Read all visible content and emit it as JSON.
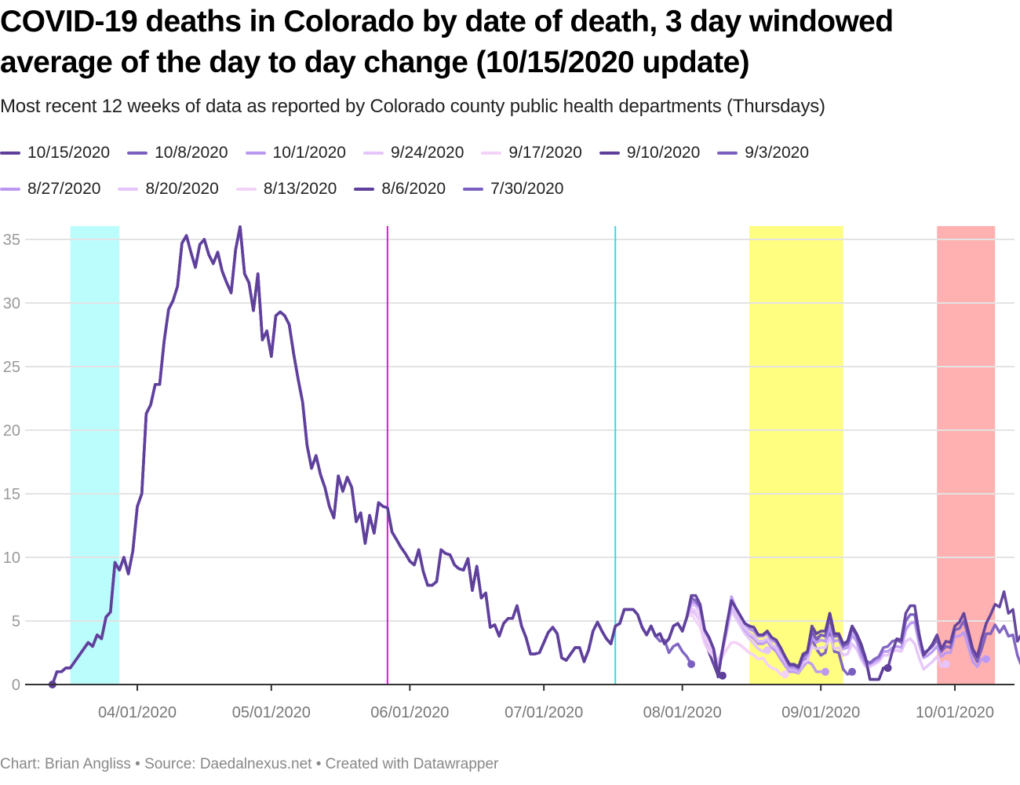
{
  "header": {
    "title": "COVID-19 deaths in Colorado by date of death, 3 day windowed average of the day to day change (10/15/2020 update)",
    "subtitle": "Most recent 12 weeks of data as reported by Colorado county public health departments (Thursdays)"
  },
  "footer": {
    "text": "Chart: Brian Angliss • Source: Daedalnexus.net • Created with Datawrapper"
  },
  "chart_data": {
    "type": "line",
    "title": "COVID-19 deaths in Colorado by date of death, 3 day windowed average of the day to day change (10/15/2020 update)",
    "xlabel": "",
    "ylabel": "",
    "ylim": [
      0,
      36
    ],
    "yticks": [
      0,
      5,
      10,
      15,
      20,
      25,
      30,
      35
    ],
    "x_start": "2020-03-13",
    "x_end": "2020-10-12",
    "xticks": [
      {
        "date": "2020-04-01",
        "label": "04/01/2020"
      },
      {
        "date": "2020-05-01",
        "label": "05/01/2020"
      },
      {
        "date": "2020-06-01",
        "label": "06/01/2020"
      },
      {
        "date": "2020-07-01",
        "label": "07/01/2020"
      },
      {
        "date": "2020-08-01",
        "label": "08/01/2020"
      },
      {
        "date": "2020-09-01",
        "label": "09/01/2020"
      },
      {
        "date": "2020-10-01",
        "label": "10/01/2020"
      }
    ],
    "grid": true,
    "legend_position": "top-left",
    "highlight_ranges": [
      {
        "start": "2020-03-17",
        "end": "2020-03-28",
        "color": "#bbfdfc"
      },
      {
        "start": "2020-08-16",
        "end": "2020-09-06",
        "color": "#fffe80"
      },
      {
        "start": "2020-09-27",
        "end": "2020-10-10",
        "color": "#ffb1b1"
      }
    ],
    "reference_lines": [
      {
        "date": "2020-05-27",
        "color": "#e80ee8"
      },
      {
        "date": "2020-07-17",
        "color": "#2adfe0"
      }
    ],
    "base_series": {
      "start": "2020-03-13",
      "values": [
        0,
        1,
        1,
        1.3,
        1.3,
        1.8,
        2.3,
        2.8,
        3.3,
        3,
        3.9,
        3.6,
        5.3,
        5.7,
        9.6,
        9,
        10,
        8.7,
        10.5,
        14,
        15,
        21.3,
        22,
        23.6,
        23.6,
        27,
        29.5,
        30.2,
        31.3,
        34.7,
        35.3,
        34,
        32.8,
        34.6,
        35,
        33.8,
        33.1,
        34,
        32.5,
        31.6,
        30.8,
        34.2,
        36,
        32.3,
        31.6,
        29.4,
        32.3,
        27.1,
        27.8,
        25.8,
        29,
        29.3,
        29,
        28.3,
        26,
        24,
        22.2,
        18.8,
        17,
        18,
        16.5,
        15.5,
        14,
        13.1,
        16.4,
        15.2,
        16.3,
        15.5,
        12.8,
        13.5,
        11.1,
        13.3,
        11.9,
        14.3,
        14,
        13.9,
        12,
        11.4,
        10.8,
        10.3,
        9.7,
        9.4,
        10.6,
        8.9,
        7.8,
        7.8,
        8.1,
        10.6,
        10.3,
        10.2,
        9.4,
        9.1,
        9,
        9.9,
        7.4,
        9.3,
        6.8,
        7.2,
        4.5,
        4.7,
        3.8,
        4.8,
        5.2,
        5.2,
        6.2,
        4.6,
        3.7,
        2.4,
        2.4,
        2.5,
        3.3,
        4.1,
        4.5,
        4,
        2.1,
        1.9,
        2.4,
        2.9,
        2.9,
        1.8,
        2.7,
        4.2,
        4.9,
        4.2,
        3.6,
        3.2,
        4.6,
        4.8,
        5.9,
        5.9,
        5.9,
        5.5,
        4.5,
        3.9,
        4.6
      ]
    },
    "series": [
      {
        "name": "10/15/2020",
        "color": "#5e3f99",
        "tail": [
          3.8,
          4,
          3.2,
          3.6,
          4.6,
          4.8,
          4.2,
          5.3,
          7,
          7,
          6.3,
          4.3,
          3.7,
          2.8,
          0.6,
          2.8,
          4.8,
          6.6,
          6,
          5.4,
          4.8,
          4.6,
          4.5,
          3.9,
          3.9,
          4.2,
          3.7,
          3.5,
          2.9,
          2.2,
          1.6,
          1.6,
          1.4,
          2.4,
          2.6,
          4.6,
          4,
          4.2,
          4.2,
          5.6,
          4,
          4,
          3.2,
          3.4,
          4.6,
          4,
          3.2,
          2.1,
          0.4,
          0.4,
          0.4,
          1.3,
          1.3,
          2.6,
          3.6,
          3.5,
          5.6,
          6.2,
          6.2,
          4,
          2.3,
          2.7,
          3.2,
          3.9,
          2.8,
          3.4,
          3.3,
          4.6,
          4.9,
          5.6,
          4.2,
          2.8,
          2.2,
          3.6,
          4.8,
          5.5,
          6.3,
          6.1,
          7.3,
          5.6,
          5.9,
          3.4,
          4,
          4,
          4.2,
          4.3,
          4.3,
          2.4,
          2.3
        ]
      },
      {
        "name": "10/8/2020",
        "color": "#7b5fc0",
        "tail": [
          3.8,
          4,
          3.2,
          3.6,
          4.6,
          4.8,
          4.2,
          5.3,
          6.8,
          6.6,
          6.1,
          4.3,
          3.7,
          2.8,
          0.6,
          2.8,
          4.8,
          6.6,
          6,
          5.4,
          4.8,
          4.6,
          4.5,
          3.9,
          3.9,
          4.2,
          3.7,
          3.5,
          2.9,
          2.2,
          1.5,
          1.5,
          1.3,
          2.2,
          2.5,
          4.2,
          3.6,
          3.9,
          3.8,
          5.2,
          3.8,
          3.8,
          3,
          3.2,
          4.4,
          3.8,
          2.8,
          1.9,
          1.7,
          2,
          2.2,
          2.9,
          3,
          3.4,
          3.5,
          3.3,
          5,
          5.5,
          5.5,
          3.8,
          2.5,
          2.7,
          3,
          3.5,
          2.6,
          3,
          2.9,
          4.3,
          4.4,
          5,
          3.8,
          2.5,
          1.8,
          2.8,
          4,
          4,
          4.7,
          4.1,
          4.6,
          3.8,
          3.9,
          2.3,
          1.4,
          1.7
        ]
      },
      {
        "name": "10/1/2020",
        "color": "#bb99f2",
        "tail": [
          3.8,
          4,
          3.2,
          3.6,
          4.6,
          4.8,
          4.2,
          5.3,
          6.5,
          6.4,
          6,
          4.2,
          3.6,
          2.8,
          0.9,
          2.8,
          4.8,
          6.9,
          6,
          5.4,
          4.8,
          4.4,
          4.2,
          3.8,
          3.8,
          4,
          3.5,
          3.3,
          2.6,
          2,
          1.3,
          1.3,
          1.1,
          2,
          2.3,
          3.7,
          3.3,
          3.5,
          3.4,
          4.5,
          3.4,
          3.5,
          2.8,
          2.9,
          3.9,
          3.4,
          2.3,
          1.6,
          1.6,
          1.8,
          2,
          2.6,
          2.6,
          2.9,
          3,
          2.9,
          4.3,
          4.8,
          4.9,
          3.2,
          2.1,
          2.3,
          2.6,
          3,
          2.2,
          2.5,
          2.5,
          3.8,
          3.8,
          4.1,
          3,
          1.8,
          1.4,
          2,
          2
        ]
      },
      {
        "name": "9/24/2020",
        "color": "#e5c5fa",
        "tail": [
          3.8,
          4,
          3.2,
          3.6,
          4.6,
          4.8,
          4.2,
          5.3,
          6.3,
          6.2,
          5.8,
          4.1,
          3.5,
          2.8,
          1.4,
          2.8,
          4.6,
          6.3,
          5.6,
          5,
          4.4,
          4,
          3.8,
          3.4,
          3.4,
          3.6,
          3.1,
          2.9,
          2.3,
          1.8,
          1.2,
          1.2,
          1,
          1.7,
          1.9,
          3,
          2.8,
          2.9,
          2.9,
          3.7,
          2.8,
          2.9,
          2.3,
          2.4,
          3.2,
          2.8,
          2,
          1.4,
          1.4,
          1.6,
          1.8,
          2.3,
          2.3,
          2.6,
          2.7,
          2.6,
          3.4,
          3.6,
          3.2,
          2.1,
          1.2,
          1.5,
          1.8,
          2.2,
          1.4,
          1.6
        ]
      },
      {
        "name": "9/17/2020",
        "color": "#f3d2f8",
        "tail": [
          3.8,
          4,
          3.2,
          3.6,
          4.6,
          4.8,
          4.2,
          5.3,
          6,
          5.8,
          5.2,
          3.8,
          3.2,
          2.6,
          1.8,
          2.2,
          2.8,
          3.3,
          3.3,
          3.1,
          2.8,
          2.5,
          2.3,
          2,
          2.1,
          1.6,
          1.3,
          1.2,
          0.8,
          0.8
        ]
      },
      {
        "name": "9/10/2020",
        "color": "#5e3f99",
        "tail": [
          3.8,
          4,
          3.2,
          3.6,
          4.6,
          4.8,
          4.2,
          5.3,
          6.5,
          6.4,
          6,
          4.2,
          3.6,
          2.8,
          0.9,
          2.8,
          4.8,
          6.6,
          6,
          5.4,
          4.8,
          4.4,
          4.2,
          3.8,
          3.8,
          4,
          3.5,
          3.3,
          2.6,
          2,
          1.4,
          1.4,
          1.2,
          2.2,
          2.5,
          4.2,
          3.5,
          3.9,
          3.8,
          5.6,
          4,
          4,
          3.2,
          3.4,
          4.6,
          4,
          3.2,
          2.1,
          0.4,
          0.4,
          0.4,
          1.3,
          1.3
        ]
      },
      {
        "name": "9/3/2020",
        "color": "#7b5fc0",
        "tail": [
          3.8,
          4,
          3.2,
          3.6,
          4.6,
          4.8,
          4.2,
          5.3,
          6.3,
          6.2,
          5.8,
          4.1,
          3.5,
          2.8,
          1.4,
          2.8,
          4.6,
          6.3,
          5.6,
          5,
          4.4,
          4,
          3.8,
          3.4,
          3.4,
          3.6,
          3.1,
          2.9,
          2.3,
          1.8,
          1.2,
          1.2,
          1,
          1.9,
          2.2,
          3.6,
          2.8,
          2.3,
          2.5,
          4.3,
          2.6,
          2.5,
          1.2,
          0.8,
          1
        ]
      },
      {
        "name": "8/27/2020",
        "color": "#bb99f2",
        "tail": [
          3.8,
          4,
          3.2,
          3.6,
          4.6,
          4.8,
          4.2,
          5.3,
          6,
          5.8,
          5.2,
          3.8,
          3.2,
          2.6,
          1.6,
          2.8,
          4.4,
          6.2,
          5.6,
          5,
          4.3,
          3.9,
          3.6,
          3.2,
          3.2,
          3.4,
          2.9,
          2.6,
          2,
          1.5,
          1,
          1,
          0.9,
          1.4,
          1.8,
          1.6,
          1,
          1,
          1
        ]
      },
      {
        "name": "8/20/2020",
        "color": "#e5c5fa",
        "tail": [
          3.8,
          4,
          3.2,
          3.6,
          4.6,
          4.8,
          4.2,
          5.3,
          5.8,
          5.5,
          5,
          3.6,
          3,
          2.4,
          1.6,
          2.6,
          4.2,
          5.8,
          5.2,
          4.6,
          4,
          3.6,
          3.2,
          2.8,
          2.6,
          2.7
        ]
      },
      {
        "name": "8/13/2020",
        "color": "#f3d2f8",
        "tail": [
          3.8,
          4,
          3.2,
          3.6,
          4.6,
          4.8,
          4.2,
          5.3,
          5.5,
          5,
          4.5,
          3.2,
          2.6,
          2.2,
          1.6,
          2.3,
          2.8,
          3.3,
          3.3,
          3.1,
          2.8,
          2.5,
          2.3,
          2,
          2.1,
          1.6,
          1.3,
          1.2,
          0.8,
          0.8
        ]
      },
      {
        "name": "8/6/2020",
        "color": "#5e3f99",
        "tail": [
          3.8,
          4,
          3.2,
          3.6,
          4.6,
          4.8,
          4.2,
          5.3,
          5.9,
          5.8,
          5.2,
          3.5,
          2.5,
          1.6,
          0.7,
          0.7
        ]
      },
      {
        "name": "7/30/2020",
        "color": "#7b5fc0",
        "tail": [
          3.8,
          3.4,
          3.5,
          2.5,
          3,
          3.2,
          2.6,
          2.2,
          1.6
        ]
      }
    ]
  }
}
